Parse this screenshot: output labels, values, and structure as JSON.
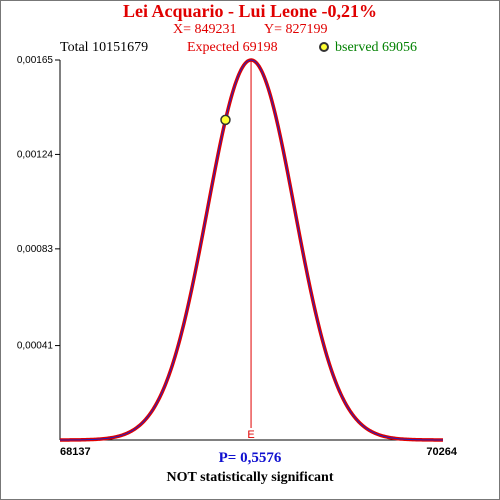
{
  "header": {
    "title": "Lei Acquario - Lui Leone  -0,21%",
    "x_value": "X= 849231",
    "y_value": "Y= 827199",
    "total": "Total  10151679",
    "expected": "Expected  69198",
    "observed": "bserved  69056"
  },
  "footer": {
    "p_value": "P= 0,5576",
    "verdict": "NOT statistically significant"
  },
  "colors": {
    "curve": "#e00000",
    "curve_inner": "#2020c0",
    "expected_line": "#e00000",
    "observed_marker": "#ffff33"
  },
  "chart_data": {
    "type": "line",
    "title": "Lei Acquario - Lui Leone  -0,21%",
    "x_range": [
      68137,
      70264
    ],
    "x_tick_labels": [
      "68137",
      "70264"
    ],
    "y_range": [
      0,
      0.00165
    ],
    "y_ticks": [
      0.00041,
      0.00083,
      0.00124,
      0.00165
    ],
    "y_tick_labels": [
      "0,00041",
      "0,00083",
      "0,00124",
      "0,00165"
    ],
    "expected": 69198,
    "expected_label": "E",
    "observed": 69056,
    "observed_density": 0.00139,
    "distribution": {
      "kind": "normal",
      "mean": 69198,
      "peak_density": 0.00165
    },
    "grid": false
  }
}
